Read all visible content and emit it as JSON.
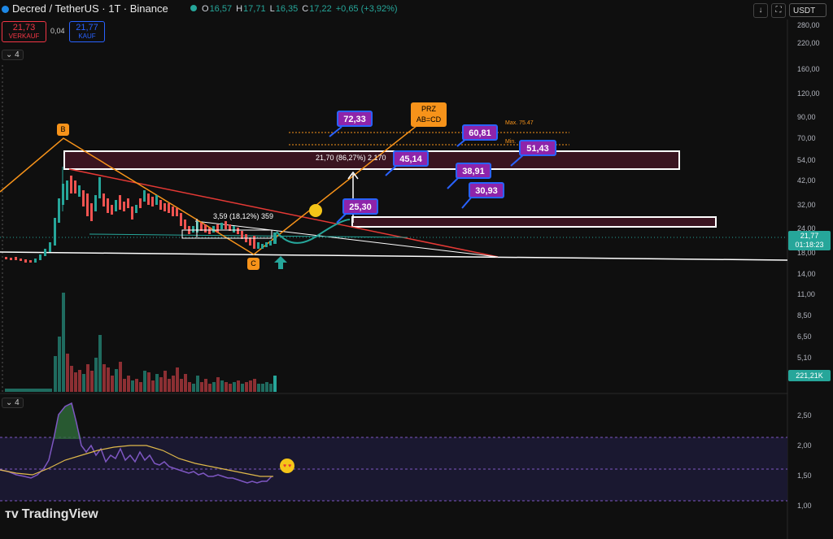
{
  "header": {
    "symbol": "Decred / TetherUS · 1T · Binance",
    "open_label": "O",
    "open": "16,57",
    "high_label": "H",
    "high": "17,71",
    "low_label": "L",
    "low": "16,35",
    "close_label": "C",
    "close": "17,22",
    "change": "+0,65 (+3,92%)",
    "currency": "USDT"
  },
  "trade": {
    "sell_price": "21,73",
    "sell_label": "VERKAUF",
    "spread": "0,04",
    "buy_price": "21,77",
    "buy_label": "KAUF"
  },
  "indicator_count_main": "4",
  "indicator_count_sub": "4",
  "price_axis": [
    "280,00",
    "220,00",
    "160,00",
    "120,00",
    "90,00",
    "70,00",
    "54,00",
    "42,00",
    "32,00",
    "24,00",
    "18,00",
    "14,00",
    "11,00",
    "8,50",
    "6,50",
    "5,10"
  ],
  "current_price": {
    "price": "21,77",
    "countdown": "01:18:23"
  },
  "volume_tag": "221,21K",
  "osc_axis": [
    "2,50",
    "2,00",
    "1,50",
    "1,00"
  ],
  "annotations": {
    "target_72": "72,33",
    "target_60": "60,81",
    "target_51": "51,43",
    "target_45": "45,14",
    "target_38": "38,91",
    "target_30": "30,93",
    "target_25": "25,30",
    "prz_line1": "PRZ",
    "prz_line2": "AB=CD",
    "max_label": "Max. 75.47",
    "min_label": "Min.",
    "measure_top": "21,70 (86,27%) 2.170",
    "measure_low": "3,59 (18,12%) 359",
    "point_b": "B",
    "point_c": "C"
  },
  "brand": "TradingView",
  "colors": {
    "up": "#26a69a",
    "down": "#ef5350",
    "purple_box": "#8e24aa",
    "orange": "#f7931a",
    "red_line": "#e53935"
  }
}
